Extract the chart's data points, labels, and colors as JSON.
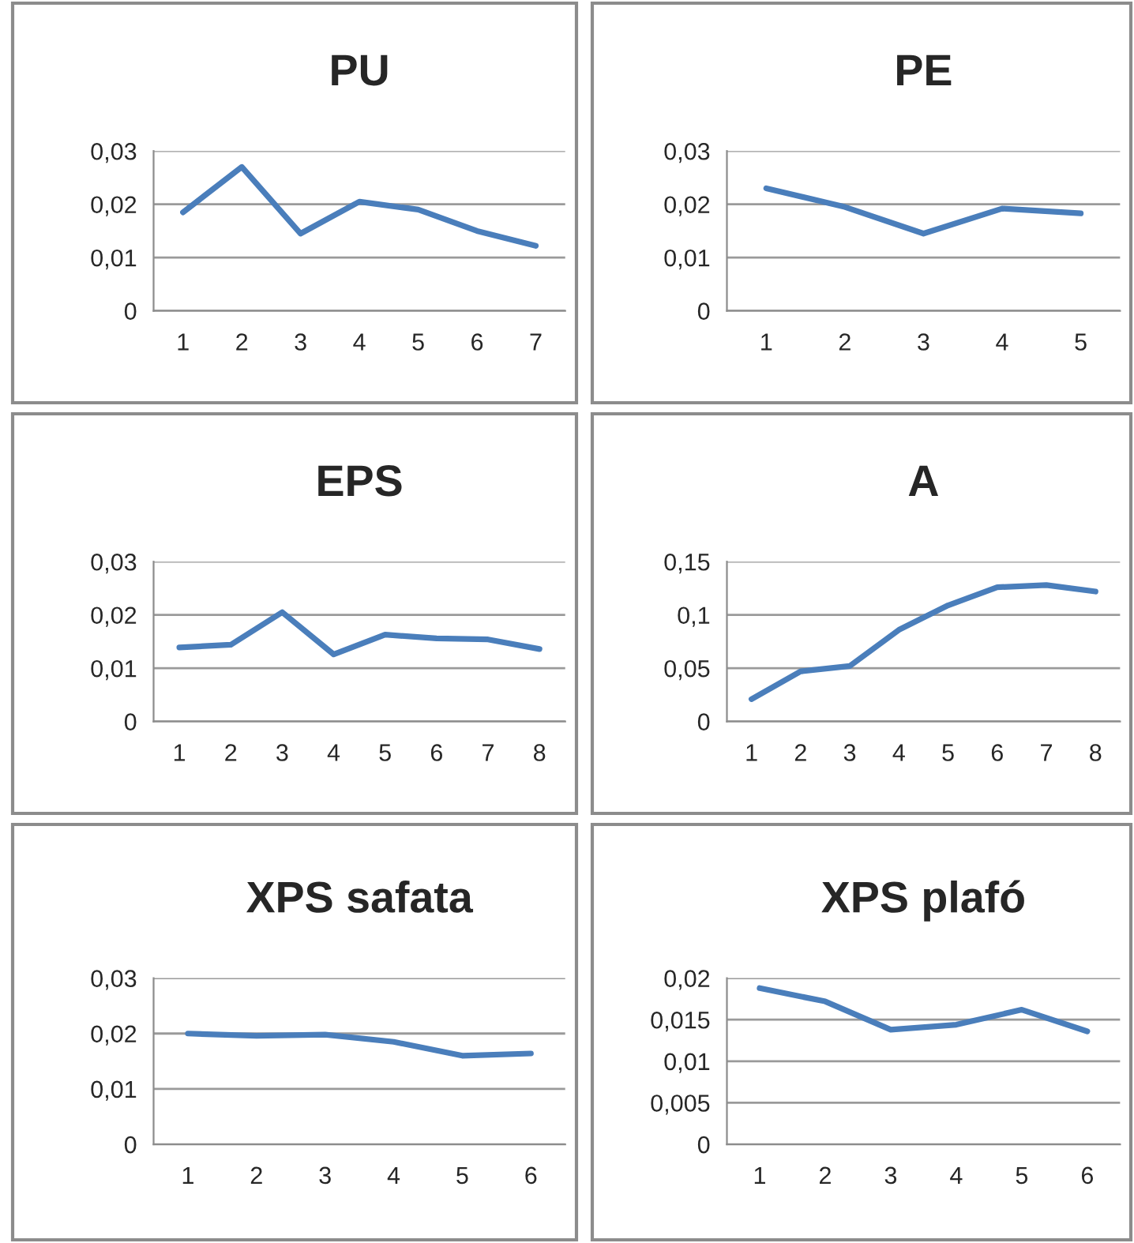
{
  "chart_data": [
    {
      "type": "line",
      "title": "PU",
      "categories": [
        "1",
        "2",
        "3",
        "4",
        "5",
        "6",
        "7"
      ],
      "series": [
        {
          "color": "#4a7ebb",
          "values": [
            0.0185,
            0.027,
            0.0145,
            0.0205,
            0.019,
            0.015,
            0.0122
          ]
        }
      ],
      "ylim": [
        0,
        0.03
      ],
      "yticks": [
        {
          "value": 0,
          "label": "0"
        },
        {
          "value": 0.01,
          "label": "0,01"
        },
        {
          "value": 0.02,
          "label": "0,02"
        },
        {
          "value": 0.03,
          "label": "0,03"
        }
      ],
      "grid": "y",
      "marker": "none",
      "line_style": "solid"
    },
    {
      "type": "line",
      "title": "PE",
      "categories": [
        "1",
        "2",
        "3",
        "4",
        "5"
      ],
      "series": [
        {
          "color": "#4a7ebb",
          "values": [
            0.023,
            0.0195,
            0.0145,
            0.0192,
            0.0183
          ]
        }
      ],
      "ylim": [
        0,
        0.03
      ],
      "yticks": [
        {
          "value": 0,
          "label": "0"
        },
        {
          "value": 0.01,
          "label": "0,01"
        },
        {
          "value": 0.02,
          "label": "0,02"
        },
        {
          "value": 0.03,
          "label": "0,03"
        }
      ],
      "grid": "y",
      "marker": "none",
      "line_style": "solid"
    },
    {
      "type": "line",
      "title": "EPS",
      "categories": [
        "1",
        "2",
        "3",
        "4",
        "5",
        "6",
        "7",
        "8"
      ],
      "series": [
        {
          "color": "#4a7ebb",
          "values": [
            0.0139,
            0.0144,
            0.0205,
            0.0126,
            0.0163,
            0.0156,
            0.0154,
            0.0136
          ]
        }
      ],
      "ylim": [
        0,
        0.03
      ],
      "yticks": [
        {
          "value": 0,
          "label": "0"
        },
        {
          "value": 0.01,
          "label": "0,01"
        },
        {
          "value": 0.02,
          "label": "0,02"
        },
        {
          "value": 0.03,
          "label": "0,03"
        }
      ],
      "grid": "y",
      "marker": "none",
      "line_style": "solid"
    },
    {
      "type": "line",
      "title": "A",
      "categories": [
        "1",
        "2",
        "3",
        "4",
        "5",
        "6",
        "7",
        "8"
      ],
      "series": [
        {
          "color": "#4a7ebb",
          "values": [
            0.021,
            0.047,
            0.052,
            0.086,
            0.109,
            0.126,
            0.128,
            0.122
          ]
        }
      ],
      "ylim": [
        0,
        0.15
      ],
      "yticks": [
        {
          "value": 0,
          "label": "0"
        },
        {
          "value": 0.05,
          "label": "0,05"
        },
        {
          "value": 0.1,
          "label": "0,1"
        },
        {
          "value": 0.15,
          "label": "0,15"
        }
      ],
      "grid": "y",
      "marker": "none",
      "line_style": "solid"
    },
    {
      "type": "line",
      "title": "XPS safata",
      "categories": [
        "1",
        "2",
        "3",
        "4",
        "5",
        "6"
      ],
      "series": [
        {
          "color": "#4a7ebb",
          "values": [
            0.02,
            0.0196,
            0.0198,
            0.0185,
            0.016,
            0.0164
          ]
        }
      ],
      "ylim": [
        0,
        0.03
      ],
      "yticks": [
        {
          "value": 0,
          "label": "0"
        },
        {
          "value": 0.01,
          "label": "0,01"
        },
        {
          "value": 0.02,
          "label": "0,02"
        },
        {
          "value": 0.03,
          "label": "0,03"
        }
      ],
      "grid": "y",
      "marker": "none",
      "line_style": "solid"
    },
    {
      "type": "line",
      "title": "XPS plafó",
      "categories": [
        "1",
        "2",
        "3",
        "4",
        "5",
        "6"
      ],
      "series": [
        {
          "color": "#4a7ebb",
          "values": [
            0.0188,
            0.0172,
            0.0138,
            0.0144,
            0.0162,
            0.0136
          ]
        }
      ],
      "ylim": [
        0,
        0.02
      ],
      "yticks": [
        {
          "value": 0,
          "label": "0"
        },
        {
          "value": 0.005,
          "label": "0,005"
        },
        {
          "value": 0.01,
          "label": "0,01"
        },
        {
          "value": 0.015,
          "label": "0,015"
        },
        {
          "value": 0.02,
          "label": "0,02"
        }
      ],
      "grid": "y",
      "marker": "none",
      "line_style": "solid"
    }
  ]
}
